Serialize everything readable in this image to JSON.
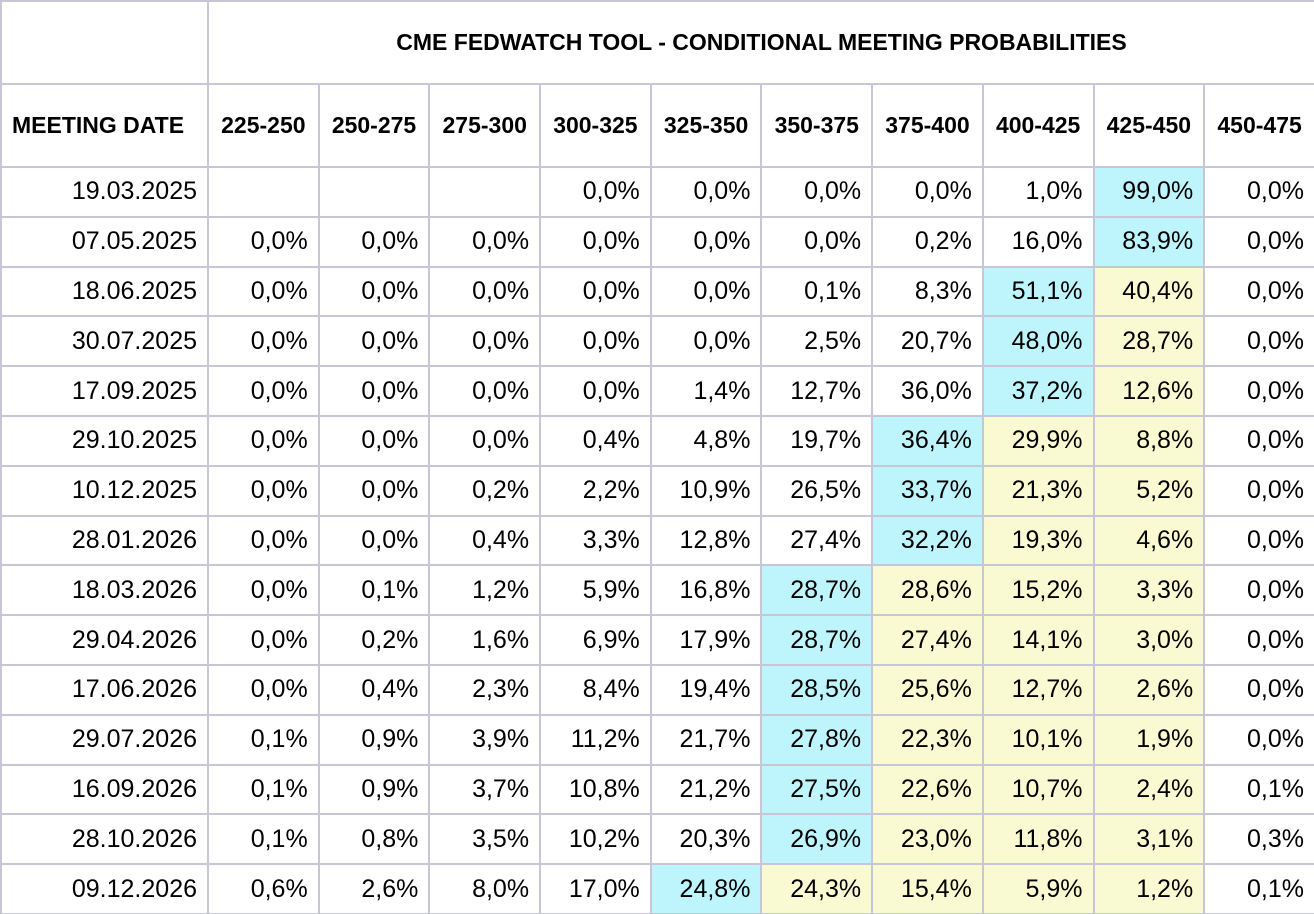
{
  "chart_data": {
    "type": "table",
    "title": "CME FEDWATCH TOOL - CONDITIONAL MEETING PROBABILITIES",
    "row_header": "MEETING DATE",
    "columns": [
      "225-250",
      "250-275",
      "275-300",
      "300-325",
      "325-350",
      "350-375",
      "375-400",
      "400-425",
      "425-450",
      "450-475"
    ],
    "rows": [
      {
        "date": "19.03.2025",
        "values": [
          "",
          "",
          "",
          "0,0%",
          "0,0%",
          "0,0%",
          "0,0%",
          "1,0%",
          "99,0%",
          "0,0%"
        ],
        "max_col": 8
      },
      {
        "date": "07.05.2025",
        "values": [
          "0,0%",
          "0,0%",
          "0,0%",
          "0,0%",
          "0,0%",
          "0,0%",
          "0,2%",
          "16,0%",
          "83,9%",
          "0,0%"
        ],
        "max_col": 8
      },
      {
        "date": "18.06.2025",
        "values": [
          "0,0%",
          "0,0%",
          "0,0%",
          "0,0%",
          "0,0%",
          "0,1%",
          "8,3%",
          "51,1%",
          "40,4%",
          "0,0%"
        ],
        "max_col": 7
      },
      {
        "date": "30.07.2025",
        "values": [
          "0,0%",
          "0,0%",
          "0,0%",
          "0,0%",
          "0,0%",
          "2,5%",
          "20,7%",
          "48,0%",
          "28,7%",
          "0,0%"
        ],
        "max_col": 7
      },
      {
        "date": "17.09.2025",
        "values": [
          "0,0%",
          "0,0%",
          "0,0%",
          "0,0%",
          "1,4%",
          "12,7%",
          "36,0%",
          "37,2%",
          "12,6%",
          "0,0%"
        ],
        "max_col": 7
      },
      {
        "date": "29.10.2025",
        "values": [
          "0,0%",
          "0,0%",
          "0,0%",
          "0,4%",
          "4,8%",
          "19,7%",
          "36,4%",
          "29,9%",
          "8,8%",
          "0,0%"
        ],
        "max_col": 6
      },
      {
        "date": "10.12.2025",
        "values": [
          "0,0%",
          "0,0%",
          "0,2%",
          "2,2%",
          "10,9%",
          "26,5%",
          "33,7%",
          "21,3%",
          "5,2%",
          "0,0%"
        ],
        "max_col": 6
      },
      {
        "date": "28.01.2026",
        "values": [
          "0,0%",
          "0,0%",
          "0,4%",
          "3,3%",
          "12,8%",
          "27,4%",
          "32,2%",
          "19,3%",
          "4,6%",
          "0,0%"
        ],
        "max_col": 6
      },
      {
        "date": "18.03.2026",
        "values": [
          "0,0%",
          "0,1%",
          "1,2%",
          "5,9%",
          "16,8%",
          "28,7%",
          "28,6%",
          "15,2%",
          "3,3%",
          "0,0%"
        ],
        "max_col": 5
      },
      {
        "date": "29.04.2026",
        "values": [
          "0,0%",
          "0,2%",
          "1,6%",
          "6,9%",
          "17,9%",
          "28,7%",
          "27,4%",
          "14,1%",
          "3,0%",
          "0,0%"
        ],
        "max_col": 5
      },
      {
        "date": "17.06.2026",
        "values": [
          "0,0%",
          "0,4%",
          "2,3%",
          "8,4%",
          "19,4%",
          "28,5%",
          "25,6%",
          "12,7%",
          "2,6%",
          "0,0%"
        ],
        "max_col": 5
      },
      {
        "date": "29.07.2026",
        "values": [
          "0,1%",
          "0,9%",
          "3,9%",
          "11,2%",
          "21,7%",
          "27,8%",
          "22,3%",
          "10,1%",
          "1,9%",
          "0,0%"
        ],
        "max_col": 5
      },
      {
        "date": "16.09.2026",
        "values": [
          "0,1%",
          "0,9%",
          "3,7%",
          "10,8%",
          "21,2%",
          "27,5%",
          "22,6%",
          "10,7%",
          "2,4%",
          "0,1%"
        ],
        "max_col": 5
      },
      {
        "date": "28.10.2026",
        "values": [
          "0,1%",
          "0,8%",
          "3,5%",
          "10,2%",
          "20,3%",
          "26,9%",
          "23,0%",
          "11,8%",
          "3,1%",
          "0,3%"
        ],
        "max_col": 5
      },
      {
        "date": "09.12.2026",
        "values": [
          "0,6%",
          "2,6%",
          "8,0%",
          "17,0%",
          "24,8%",
          "24,3%",
          "15,4%",
          "5,9%",
          "1,2%",
          "0,1%"
        ],
        "max_col": 4
      }
    ],
    "current_range_col": 8,
    "colors": {
      "highlight_max": "#bef4fb",
      "highlight_above": "#fafad2",
      "border": "#c6c6d6"
    }
  }
}
